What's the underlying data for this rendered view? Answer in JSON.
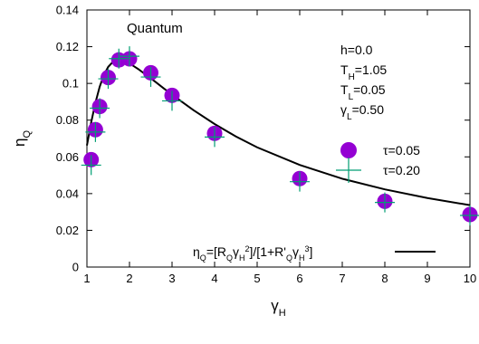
{
  "chart_data": {
    "type": "scatter",
    "title": "Quantum",
    "xlabel": {
      "base": "γ",
      "sub": "H"
    },
    "ylabel": {
      "base": "η",
      "sub": "Q"
    },
    "xlim": [
      1,
      10
    ],
    "ylim": [
      0,
      0.14
    ],
    "x_ticks": [
      "1",
      "2",
      "3",
      "4",
      "5",
      "6",
      "7",
      "8",
      "9",
      "10"
    ],
    "y_ticks": [
      "0",
      "0.02",
      "0.04",
      "0.06",
      "0.08",
      "0.1",
      "0.12",
      "0.14"
    ],
    "grid": false,
    "legend_position": "right",
    "parameters": [
      {
        "base": "h",
        "sub": "",
        "value": "=0.0"
      },
      {
        "base": "T",
        "sub": "H",
        "value": "=1.05"
      },
      {
        "base": "T",
        "sub": "L",
        "value": "=0.05"
      },
      {
        "base": "γ",
        "sub": "L",
        "value": "=0.50"
      }
    ],
    "series": [
      {
        "name": "τ=0.05",
        "marker": "circle",
        "color": "#9400d3",
        "x": [
          1.1,
          1.2,
          1.3,
          1.5,
          1.75,
          2.0,
          2.5,
          3.0,
          4.0,
          6.0,
          8.0,
          10.0
        ],
        "y": [
          0.0585,
          0.0748,
          0.0874,
          0.1032,
          0.1128,
          0.1134,
          0.1058,
          0.0935,
          0.0728,
          0.0482,
          0.0358,
          0.0286
        ]
      },
      {
        "name": "τ=0.20",
        "marker": "plus",
        "color": "#009e73",
        "x": [
          1.1,
          1.2,
          1.3,
          1.5,
          1.75,
          2.0,
          2.5,
          3.0,
          4.0,
          6.0,
          8.0,
          10.0
        ],
        "y": [
          0.0555,
          0.0735,
          0.0865,
          0.1025,
          0.1135,
          0.1148,
          0.1035,
          0.0905,
          0.0708,
          0.0465,
          0.0352,
          0.0281
        ]
      }
    ],
    "fit_curve": {
      "label_parts": [
        {
          "text": "η",
          "style": "base"
        },
        {
          "text": "Q",
          "style": "sub"
        },
        {
          "text": "=[R",
          "style": "base"
        },
        {
          "text": "Q",
          "style": "sub"
        },
        {
          "text": "γ",
          "style": "base"
        },
        {
          "text": "H",
          "style": "sub"
        },
        {
          "text": "2",
          "style": "sup"
        },
        {
          "text": "]/[1+R'",
          "style": "base"
        },
        {
          "text": "Q",
          "style": "sub"
        },
        {
          "text": "γ",
          "style": "base"
        },
        {
          "text": "H",
          "style": "sub"
        },
        {
          "text": "3",
          "style": "sup"
        },
        {
          "text": "]",
          "style": "base"
        }
      ],
      "color": "#000000",
      "x": [
        1.0,
        1.05,
        1.1,
        1.2,
        1.3,
        1.4,
        1.5,
        1.6,
        1.7,
        1.8,
        1.9,
        2.0,
        2.1,
        2.2,
        2.4,
        2.6,
        2.8,
        3.0,
        3.5,
        4.0,
        4.5,
        5.0,
        6.0,
        7.0,
        8.0,
        9.0,
        10.0
      ],
      "y": [
        0.0662,
        0.0725,
        0.0788,
        0.0895,
        0.0982,
        0.1047,
        0.109,
        0.1115,
        0.1125,
        0.1125,
        0.1118,
        0.1108,
        0.1094,
        0.1079,
        0.1045,
        0.101,
        0.0974,
        0.0939,
        0.0855,
        0.0779,
        0.0711,
        0.0652,
        0.0556,
        0.0481,
        0.0423,
        0.0376,
        0.0337
      ]
    }
  }
}
